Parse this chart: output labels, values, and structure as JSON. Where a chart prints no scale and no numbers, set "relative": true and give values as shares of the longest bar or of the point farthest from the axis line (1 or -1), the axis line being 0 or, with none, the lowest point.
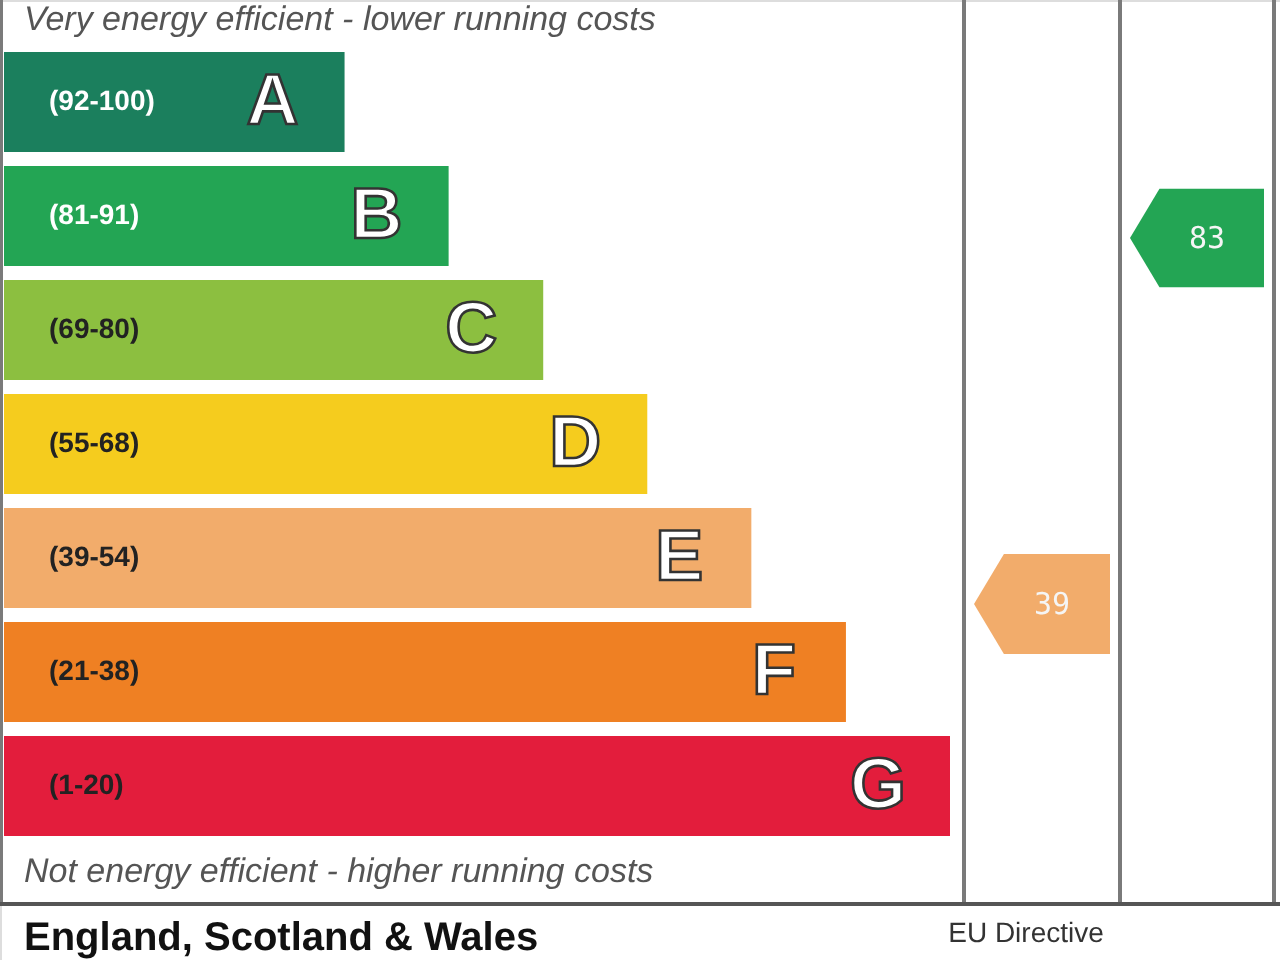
{
  "chart_data": {
    "type": "bar",
    "orientation": "horizontal",
    "relative": true,
    "legend": false,
    "categories": [
      "(92-100)",
      "(81-91)",
      "(69-80)",
      "(55-68)",
      "(39-54)",
      "(21-38)",
      "(1-20)"
    ],
    "values": [
      0.36,
      0.47,
      0.57,
      0.68,
      0.79,
      0.89,
      1
    ],
    "colors": [
      "#1b7f5d",
      "#23a554",
      "#8cbf40",
      "#f5cc1e",
      "#f2ac6b",
      "#ef8023",
      "#e31d3c"
    ],
    "annotations": [
      "Very energy efficient - lower running costs",
      "Not energy efficient - higher running costs",
      "England, Scotland & Wales",
      "EU Directive",
      "39",
      "83",
      "A",
      "B",
      "C",
      "D",
      "E",
      "F",
      "G"
    ]
  }
}
